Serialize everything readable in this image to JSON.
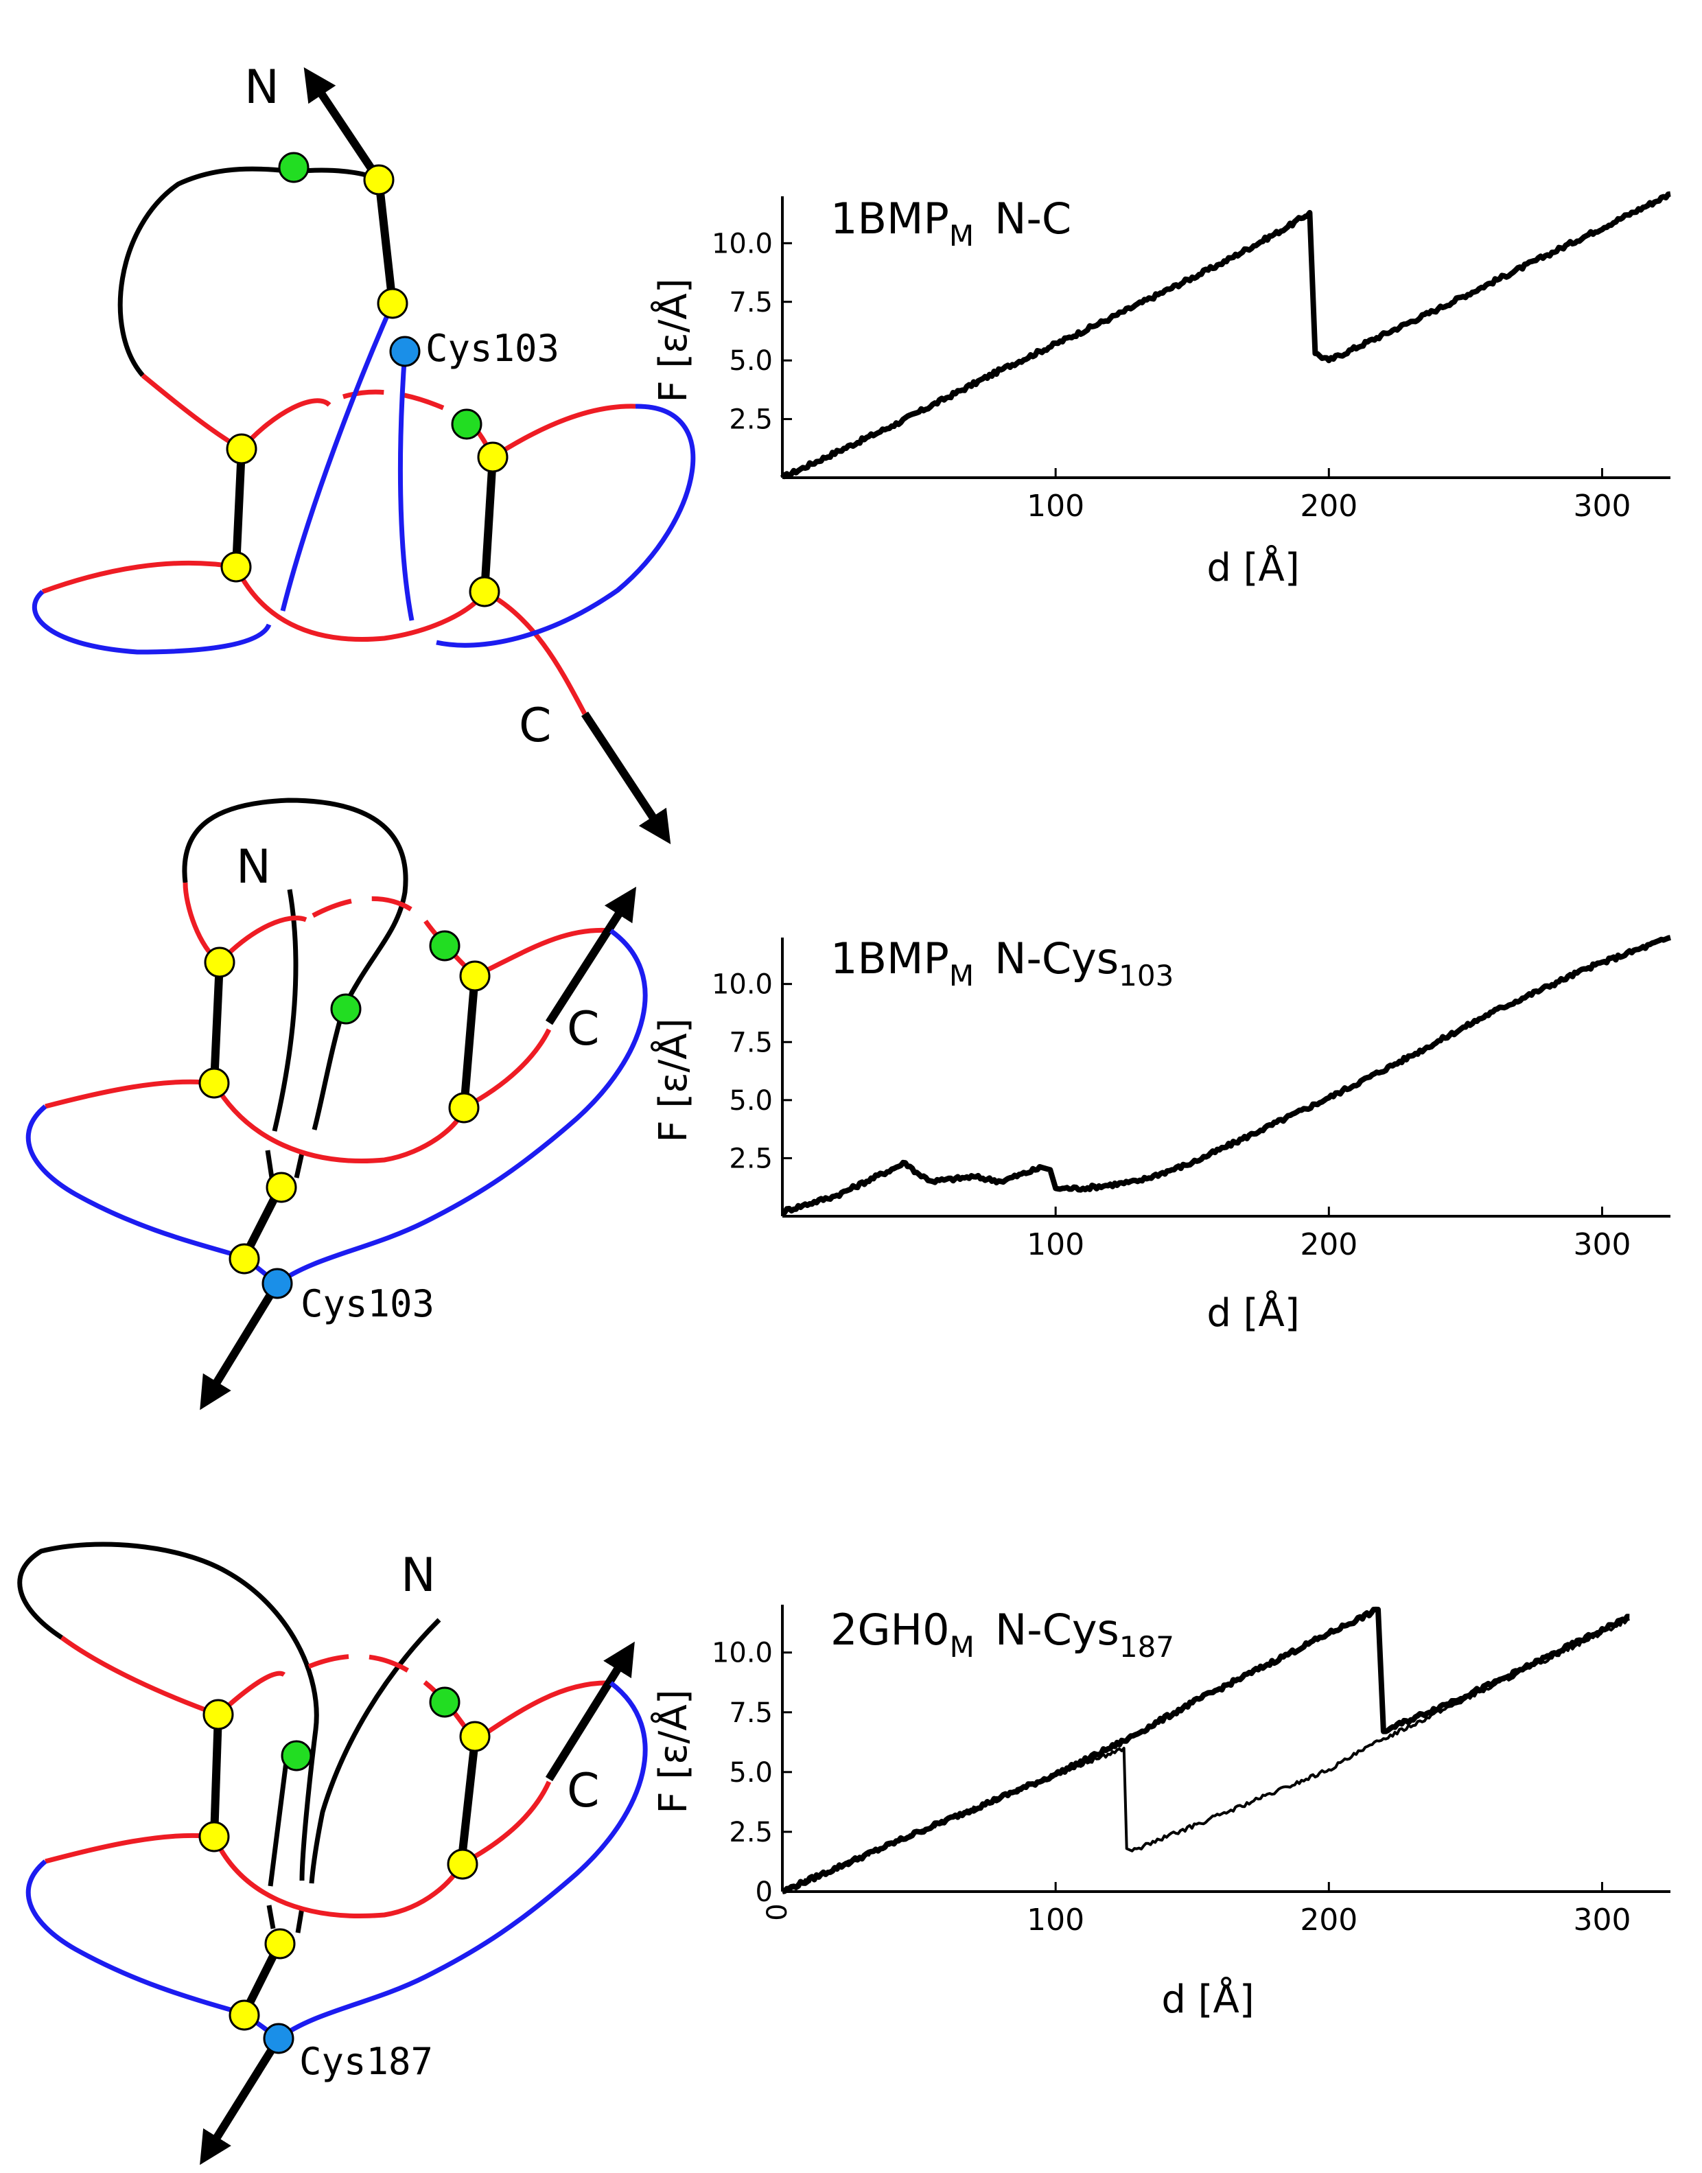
{
  "colors": {
    "black": "#000000",
    "red": "#ee1c24",
    "blue": "#1c1cf0",
    "bead_yellow": "#ffff00",
    "bead_green": "#22dd22",
    "bead_cys": "#1a8fe8"
  },
  "diagrams": [
    {
      "n_label": "N",
      "c_label": "C",
      "cys_label": "Cys103"
    },
    {
      "n_label": "N",
      "c_label": "C",
      "cys_label": "Cys103"
    },
    {
      "n_label": "N",
      "c_label": "C",
      "cys_label": "Cys187"
    }
  ],
  "chart_data": [
    {
      "type": "line",
      "title": "1BMP",
      "title_sub": "M",
      "title_rest": "N-C",
      "xlabel": "d [Å]",
      "ylabel": "F [ε/Å]",
      "xlim": [
        0,
        325
      ],
      "ylim": [
        0,
        12
      ],
      "xticks": [
        100,
        200,
        300
      ],
      "yticks": [
        2.5,
        5.0,
        7.5,
        10.0
      ],
      "ytick_labels": [
        "2.5",
        "5.0",
        "7.5",
        "10.0"
      ],
      "series": [
        {
          "points": [
            [
              0,
              0
            ],
            [
              40,
              2.2
            ],
            [
              80,
              4.6
            ],
            [
              120,
              6.8
            ],
            [
              160,
              9.1
            ],
            [
              185,
              10.7
            ],
            [
              193,
              11.3
            ],
            [
              195,
              5.3
            ],
            [
              200,
              5.0
            ],
            [
              240,
              7.2
            ],
            [
              280,
              9.5
            ],
            [
              325,
              12.1
            ]
          ]
        }
      ]
    },
    {
      "type": "line",
      "title": "1BMP",
      "title_sub": "M",
      "title_rest": "N-Cys",
      "title_rest_sub": "103",
      "xlabel": "d [Å]",
      "ylabel": "F [ε/Å]",
      "xlim": [
        0,
        325
      ],
      "ylim": [
        0,
        12
      ],
      "xticks": [
        100,
        200,
        300
      ],
      "yticks": [
        2.5,
        5.0,
        7.5,
        10.0
      ],
      "ytick_labels": [
        "2.5",
        "5.0",
        "7.5",
        "10.0"
      ],
      "series": [
        {
          "points": [
            [
              0,
              0.2
            ],
            [
              20,
              0.9
            ],
            [
              45,
              2.3
            ],
            [
              50,
              1.8
            ],
            [
              55,
              1.5
            ],
            [
              70,
              1.7
            ],
            [
              80,
              1.5
            ],
            [
              95,
              2.1
            ],
            [
              98,
              2.0
            ],
            [
              100,
              1.2
            ],
            [
              110,
              1.2
            ],
            [
              130,
              1.5
            ],
            [
              150,
              2.3
            ],
            [
              175,
              3.7
            ],
            [
              200,
              5.1
            ],
            [
              230,
              6.9
            ],
            [
              260,
              8.8
            ],
            [
              295,
              10.7
            ],
            [
              325,
              12.0
            ]
          ]
        }
      ]
    },
    {
      "type": "line",
      "title": "2GH0",
      "title_sub": "M",
      "title_rest": "N-Cys",
      "title_rest_sub": "187",
      "xlabel": "d [Å]",
      "ylabel": "F [ε/Å]",
      "xlim": [
        0,
        325
      ],
      "ylim": [
        0,
        12
      ],
      "xticks": [
        100,
        200,
        300
      ],
      "yticks": [
        0,
        2.5,
        5.0,
        7.5,
        10.0
      ],
      "ytick_labels": [
        "0",
        "2.5",
        "5.0",
        "7.5",
        "10.0"
      ],
      "x_zero_label": "0",
      "series": [
        {
          "name_hint": "trajectory-1",
          "points": [
            [
              0,
              0
            ],
            [
              50,
              2.5
            ],
            [
              100,
              4.9
            ],
            [
              125,
              6.3
            ],
            [
              150,
              7.9
            ],
            [
              200,
              10.8
            ],
            [
              218,
              11.8
            ],
            [
              220,
              6.7
            ],
            [
              260,
              8.7
            ],
            [
              310,
              11.5
            ]
          ]
        },
        {
          "name_hint": "trajectory-2",
          "points": [
            [
              0,
              0
            ],
            [
              50,
              2.5
            ],
            [
              100,
              4.9
            ],
            [
              125,
              6.0
            ],
            [
              126,
              1.8
            ],
            [
              128,
              1.7
            ],
            [
              160,
              3.2
            ],
            [
              200,
              5.1
            ],
            [
              220,
              6.4
            ],
            [
              260,
              8.6
            ],
            [
              310,
              11.4
            ]
          ]
        }
      ]
    }
  ]
}
